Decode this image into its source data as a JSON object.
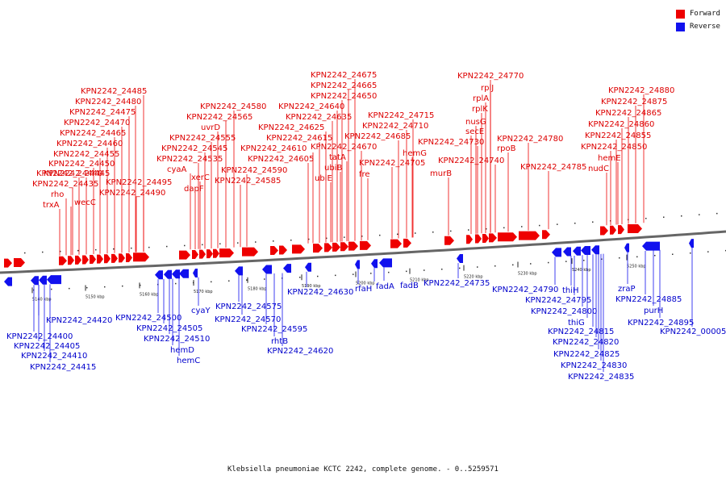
{
  "title": "Klebsiella pneumoniae KCTC 2242, complete genome. - 0..5259571",
  "colors": {
    "forward": "#ee0000",
    "reverse": "#1111ee",
    "forward_text": "#dd0000",
    "reverse_text": "#0000cc",
    "backbone": "#666666"
  },
  "legend": [
    {
      "label": "Forward",
      "color": "#ee0000"
    },
    {
      "label": "Reverse",
      "color": "#1111ee"
    }
  ],
  "ticks": [
    "5140 kbp",
    "5150 kbp",
    "5160 kbp",
    "5170 kbp",
    "5180 kbp",
    "5190 kbp",
    "5200 kbp",
    "5210 kbp",
    "5220 kbp",
    "5230 kbp",
    "5240 kbp",
    "5250 kbp"
  ],
  "forward_labels": [
    "KPN2242_24485",
    "KPN2242_24480",
    "KPN2242_24475",
    "KPN2242_24470",
    "KPN2242_24465",
    "KPN2242_24460",
    "KPN2242_24455",
    "KPN2242_24450",
    "KPN2242_24445",
    "KPN2242_24440",
    "KPN2242_24435",
    "rho",
    "trxA",
    "wecC",
    "KPN2242_24495",
    "KPN2242_24490",
    "KPN2242_24580",
    "KPN2242_24565",
    "uvrD",
    "KPN2242_24555",
    "KPN2242_24545",
    "KPN2242_24535",
    "cyaA",
    "xerC",
    "dapF",
    "KPN2242_24590",
    "KPN2242_24585",
    "KPN2242_24675",
    "KPN2242_24665",
    "KPN2242_24650",
    "KPN2242_24640",
    "KPN2242_24635",
    "KPN2242_24625",
    "KPN2242_24615",
    "KPN2242_24610",
    "KPN2242_24605",
    "tatA",
    "ubiB",
    "ubiE",
    "KPN2242_24670",
    "fre",
    "KPN2242_24715",
    "KPN2242_24710",
    "KPN2242_24685",
    "hemG",
    "KPN2242_24705",
    "murB",
    "KPN2242_24770",
    "rplJ",
    "rplA",
    "rplK",
    "nusG",
    "secE",
    "KPN2242_24730",
    "KPN2242_24740",
    "rpoB",
    "KPN2242_24780",
    "KPN2242_24785",
    "KPN2242_24880",
    "KPN2242_24875",
    "KPN2242_24865",
    "KPN2242_24860",
    "KPN2242_24855",
    "KPN2242_24850",
    "hemE",
    "nudC"
  ],
  "reverse_labels": [
    "KPN2242_24420",
    "KPN2242_24400",
    "KPN2242_24405",
    "KPN2242_24410",
    "KPN2242_24415",
    "KPN2242_24500",
    "KPN2242_24505",
    "KPN2242_24510",
    "hemD",
    "hemC",
    "cyaY",
    "KPN2242_24575",
    "KPN2242_24570",
    "KPN2242_24595",
    "rhtB",
    "KPN2242_24620",
    "KPN2242_24630",
    "rfaH",
    "fadA",
    "fadB",
    "KPN2242_24735",
    "KPN2242_24790",
    "thiH",
    "KPN2242_24795",
    "KPN2242_24800",
    "thiG",
    "KPN2242_24815",
    "KPN2242_24820",
    "KPN2242_24825",
    "KPN2242_24830",
    "KPN2242_24835",
    "zraP",
    "KPN2242_24885",
    "purH",
    "KPN2242_24895",
    "KPN2242_00005"
  ]
}
